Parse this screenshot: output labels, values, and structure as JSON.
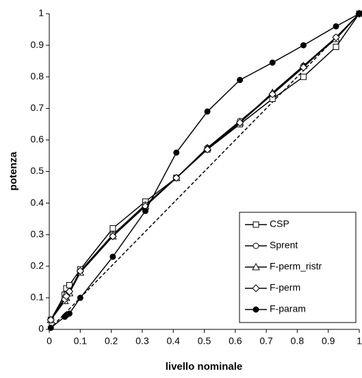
{
  "chart_data": {
    "type": "line",
    "x_label": "livello nominale",
    "y_label": "potenza",
    "x": [
      0.005,
      0.05,
      0.055,
      0.065,
      0.1,
      0.205,
      0.31,
      0.41,
      0.51,
      0.615,
      0.72,
      0.82,
      0.925,
      1
    ],
    "series": [
      {
        "name": "CSP",
        "color": "#000000",
        "marker": "square",
        "values": [
          0.03,
          0.11,
          0.13,
          0.14,
          0.19,
          0.32,
          0.405,
          0.48,
          0.57,
          0.65,
          0.73,
          0.8,
          0.895,
          1
        ]
      },
      {
        "name": "Sprent",
        "color": "#000000",
        "marker": "circle",
        "values": [
          0.03,
          0.1,
          0.11,
          0.12,
          0.185,
          0.3,
          0.395,
          0.48,
          0.575,
          0.66,
          0.745,
          0.835,
          0.925,
          1
        ]
      },
      {
        "name": "F-perm_ristr",
        "color": "#000000",
        "marker": "triangle",
        "values": [
          0.03,
          0.09,
          0.1,
          0.115,
          0.18,
          0.295,
          0.39,
          0.48,
          0.575,
          0.655,
          0.75,
          0.835,
          0.92,
          1
        ]
      },
      {
        "name": "F-perm",
        "color": "#000000",
        "marker": "diamond",
        "values": [
          0.03,
          0.095,
          0.105,
          0.12,
          0.185,
          0.295,
          0.39,
          0.48,
          0.57,
          0.655,
          0.745,
          0.83,
          0.925,
          1
        ]
      },
      {
        "name": "F-param",
        "color": "#000000",
        "marker": "filled-circle",
        "values": [
          0.005,
          0.04,
          0.045,
          0.05,
          0.1,
          0.23,
          0.375,
          0.56,
          0.69,
          0.79,
          0.845,
          0.9,
          0.96,
          1
        ]
      }
    ],
    "xlim": [
      0,
      1
    ],
    "ylim": [
      0,
      1
    ],
    "xticks": [
      0,
      0.1,
      0.2,
      0.3,
      0.4,
      0.5,
      0.6,
      0.7,
      0.8,
      0.9,
      1
    ],
    "yticks": [
      0,
      0.1,
      0.2,
      0.3,
      0.4,
      0.5,
      0.6,
      0.7,
      0.8,
      0.9,
      1
    ],
    "grid": false,
    "legend": "lower right"
  }
}
